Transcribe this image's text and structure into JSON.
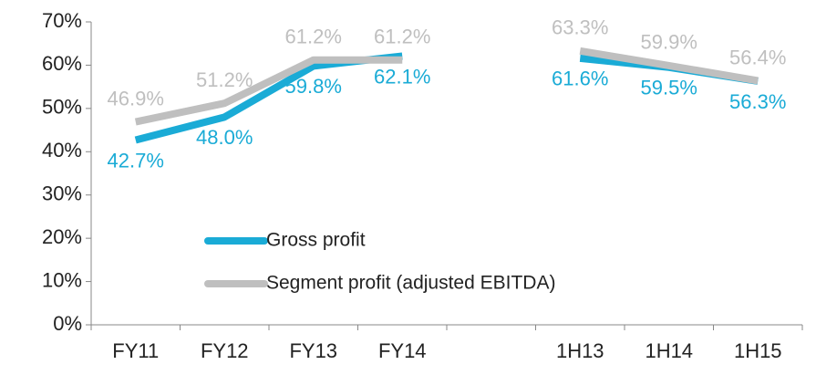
{
  "chart_data": {
    "type": "line",
    "categories": [
      "FY11",
      "FY12",
      "FY13",
      "FY14",
      null,
      "1H13",
      "1H14",
      "1H15"
    ],
    "series": [
      {
        "name": "Gross profit",
        "color": "#1aabd6",
        "values": [
          42.7,
          48.0,
          59.8,
          62.1,
          null,
          61.6,
          59.5,
          56.3
        ],
        "value_labels": [
          "42.7%",
          "48.0%",
          "59.8%",
          "62.1%",
          null,
          "61.6%",
          "59.5%",
          "56.3%"
        ]
      },
      {
        "name": "Segment profit (adjusted EBITDA)",
        "color": "#bfbfbf",
        "values": [
          46.9,
          51.2,
          61.2,
          61.2,
          null,
          63.3,
          59.9,
          56.4
        ],
        "value_labels": [
          "46.9%",
          "51.2%",
          "61.2%",
          "61.2%",
          null,
          "63.3%",
          "59.9%",
          "56.4%"
        ]
      }
    ],
    "ylim": [
      0,
      70
    ],
    "yticks": [
      {
        "value": 0,
        "label": "0%"
      },
      {
        "value": 10,
        "label": "10%"
      },
      {
        "value": 20,
        "label": "20%"
      },
      {
        "value": 30,
        "label": "30%"
      },
      {
        "value": 40,
        "label": "40%"
      },
      {
        "value": 50,
        "label": "50%"
      },
      {
        "value": 60,
        "label": "60%"
      },
      {
        "value": 70,
        "label": "70%"
      }
    ]
  }
}
